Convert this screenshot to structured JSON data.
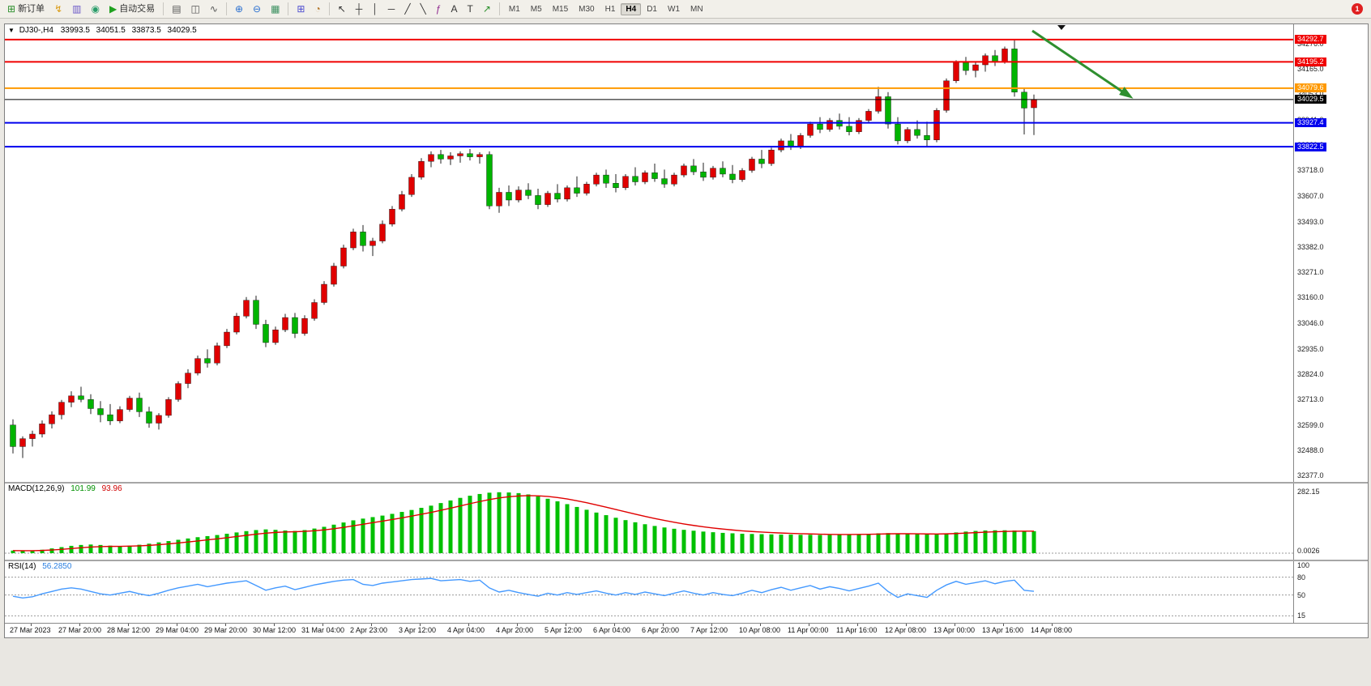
{
  "toolbar": {
    "new_order": "新订单",
    "auto_trading": "自动交易",
    "timeframes": [
      "M1",
      "M5",
      "M15",
      "M30",
      "H1",
      "H4",
      "D1",
      "W1",
      "MN"
    ],
    "active_timeframe": "H4",
    "notification_count": "1",
    "icons": {
      "new_order": "⊞",
      "lightning": "↯",
      "charts": "▥",
      "profile": "◉",
      "autotrade": "▶",
      "bar_type": "▤",
      "candle_type": "◫",
      "line_type": "∿",
      "zoom_in": "⊕",
      "zoom_out": "⊖",
      "tile_windows": "▦",
      "new_chart": "⊞",
      "clock": "◔",
      "cursor": "↖",
      "crosshair": "┼",
      "vertical_line": "│",
      "horizontal_line": "─",
      "trend_line": "╱",
      "channel": "╲",
      "fibonacci": "ƒ",
      "text": "A",
      "label": "T",
      "arrows": "↗"
    }
  },
  "chart": {
    "header": {
      "symbol": "DJ30-,H4",
      "open": "33993.5",
      "high": "34051.5",
      "low": "33873.5",
      "close": "34029.5"
    },
    "price_axis": [
      "34276.0",
      "34165.0",
      "34053.0",
      "33941.0",
      "33829.0",
      "33718.0",
      "33607.0",
      "33493.0",
      "33382.0",
      "33271.0",
      "33160.0",
      "33046.0",
      "32935.0",
      "32824.0",
      "32713.0",
      "32599.0",
      "32488.0",
      "32377.0"
    ],
    "levels": [
      {
        "label": "34292.7",
        "price": 34292.7,
        "color": "#f00000",
        "width": 2
      },
      {
        "label": "34195.2",
        "price": 34195.2,
        "color": "#f00000",
        "width": 2
      },
      {
        "label": "34079.6",
        "price": 34079.6,
        "color": "#ff9900",
        "width": 2
      },
      {
        "label": "34029.5",
        "price": 34029.5,
        "color": "#000000",
        "width": 1
      },
      {
        "label": "33927.4",
        "price": 33927.4,
        "color": "#0000ee",
        "width": 2
      },
      {
        "label": "33822.5",
        "price": 33822.5,
        "color": "#0000ee",
        "width": 2
      }
    ],
    "time_axis": [
      "27 Mar 2023",
      "27 Mar 20:00",
      "28 Mar 12:00",
      "29 Mar 04:00",
      "29 Mar 20:00",
      "30 Mar 12:00",
      "31 Mar 04:00",
      "2 Apr 23:00",
      "3 Apr 12:00",
      "4 Apr 04:00",
      "4 Apr 20:00",
      "5 Apr 12:00",
      "6 Apr 04:00",
      "6 Apr 20:00",
      "7 Apr 12:00",
      "10 Apr 08:00",
      "11 Apr 00:00",
      "11 Apr 16:00",
      "12 Apr 08:00",
      "13 Apr 00:00",
      "13 Apr 16:00",
      "14 Apr 08:00"
    ],
    "colors": {
      "up": "#e00000",
      "down": "#00b400",
      "wick": "#222222",
      "macd_hist": "#00c000",
      "macd_signal": "#e00000",
      "rsi": "#4499ff",
      "arrow": "#2f8f2f"
    }
  },
  "chart_data": {
    "type": "candlestick",
    "symbol": "DJ30-",
    "timeframe": "H4",
    "price_range": [
      32350,
      34360
    ],
    "candles": [
      [
        32600,
        32625,
        32475,
        32505
      ],
      [
        32505,
        32550,
        32455,
        32540
      ],
      [
        32540,
        32575,
        32505,
        32560
      ],
      [
        32560,
        32620,
        32545,
        32605
      ],
      [
        32605,
        32660,
        32585,
        32645
      ],
      [
        32645,
        32710,
        32625,
        32700
      ],
      [
        32700,
        32748,
        32678,
        32728
      ],
      [
        32728,
        32768,
        32700,
        32712
      ],
      [
        32712,
        32735,
        32648,
        32672
      ],
      [
        32672,
        32705,
        32612,
        32645
      ],
      [
        32645,
        32692,
        32600,
        32618
      ],
      [
        32618,
        32682,
        32608,
        32668
      ],
      [
        32668,
        32728,
        32658,
        32718
      ],
      [
        32718,
        32742,
        32635,
        32658
      ],
      [
        32658,
        32680,
        32588,
        32608
      ],
      [
        32608,
        32652,
        32580,
        32642
      ],
      [
        32642,
        32722,
        32632,
        32712
      ],
      [
        32712,
        32792,
        32702,
        32782
      ],
      [
        32782,
        32845,
        32762,
        32828
      ],
      [
        32828,
        32905,
        32818,
        32892
      ],
      [
        32892,
        32932,
        32852,
        32872
      ],
      [
        32872,
        32962,
        32862,
        32948
      ],
      [
        32948,
        33022,
        32938,
        33008
      ],
      [
        33008,
        33092,
        32998,
        33078
      ],
      [
        33078,
        33162,
        33068,
        33148
      ],
      [
        33148,
        33168,
        33022,
        33042
      ],
      [
        33042,
        33062,
        32942,
        32962
      ],
      [
        32962,
        33032,
        32952,
        33018
      ],
      [
        33018,
        33088,
        33008,
        33072
      ],
      [
        33072,
        33092,
        32982,
        33002
      ],
      [
        33002,
        33082,
        32992,
        33068
      ],
      [
        33068,
        33152,
        33058,
        33138
      ],
      [
        33138,
        33232,
        33128,
        33218
      ],
      [
        33218,
        33312,
        33208,
        33298
      ],
      [
        33298,
        33392,
        33288,
        33378
      ],
      [
        33378,
        33462,
        33368,
        33448
      ],
      [
        33448,
        33478,
        33362,
        33388
      ],
      [
        33388,
        33422,
        33342,
        33408
      ],
      [
        33408,
        33498,
        33398,
        33482
      ],
      [
        33482,
        33562,
        33472,
        33548
      ],
      [
        33548,
        33628,
        33538,
        33612
      ],
      [
        33612,
        33702,
        33602,
        33688
      ],
      [
        33688,
        33772,
        33678,
        33758
      ],
      [
        33758,
        33802,
        33732,
        33788
      ],
      [
        33788,
        33808,
        33748,
        33768
      ],
      [
        33768,
        33798,
        33742,
        33782
      ],
      [
        33782,
        33802,
        33752,
        33792
      ],
      [
        33792,
        33812,
        33762,
        33778
      ],
      [
        33778,
        33798,
        33748,
        33788
      ],
      [
        33788,
        33802,
        33548,
        33562
      ],
      [
        33562,
        33642,
        33532,
        33622
      ],
      [
        33622,
        33652,
        33562,
        33588
      ],
      [
        33588,
        33648,
        33578,
        33632
      ],
      [
        33632,
        33662,
        33592,
        33608
      ],
      [
        33608,
        33638,
        33548,
        33568
      ],
      [
        33568,
        33628,
        33558,
        33618
      ],
      [
        33618,
        33658,
        33578,
        33592
      ],
      [
        33592,
        33652,
        33582,
        33642
      ],
      [
        33642,
        33692,
        33602,
        33618
      ],
      [
        33618,
        33668,
        33608,
        33658
      ],
      [
        33658,
        33708,
        33648,
        33698
      ],
      [
        33698,
        33722,
        33642,
        33662
      ],
      [
        33662,
        33702,
        33622,
        33642
      ],
      [
        33642,
        33702,
        33632,
        33692
      ],
      [
        33692,
        33732,
        33652,
        33668
      ],
      [
        33668,
        33718,
        33658,
        33708
      ],
      [
        33708,
        33748,
        33668,
        33682
      ],
      [
        33682,
        33722,
        33642,
        33658
      ],
      [
        33658,
        33708,
        33648,
        33698
      ],
      [
        33698,
        33748,
        33688,
        33738
      ],
      [
        33738,
        33768,
        33698,
        33712
      ],
      [
        33712,
        33752,
        33672,
        33688
      ],
      [
        33688,
        33738,
        33678,
        33728
      ],
      [
        33728,
        33758,
        33688,
        33702
      ],
      [
        33702,
        33742,
        33662,
        33678
      ],
      [
        33678,
        33728,
        33668,
        33718
      ],
      [
        33718,
        33778,
        33708,
        33768
      ],
      [
        33768,
        33808,
        33728,
        33748
      ],
      [
        33748,
        33818,
        33738,
        33808
      ],
      [
        33808,
        33858,
        33798,
        33848
      ],
      [
        33848,
        33878,
        33808,
        33822
      ],
      [
        33822,
        33882,
        33812,
        33872
      ],
      [
        33872,
        33932,
        33862,
        33922
      ],
      [
        33922,
        33952,
        33882,
        33898
      ],
      [
        33898,
        33948,
        33888,
        33938
      ],
      [
        33938,
        33968,
        33898,
        33912
      ],
      [
        33912,
        33952,
        33872,
        33888
      ],
      [
        33888,
        33948,
        33878,
        33938
      ],
      [
        33938,
        33988,
        33928,
        33978
      ],
      [
        33978,
        34085,
        33968,
        34042
      ],
      [
        34042,
        34062,
        33902,
        33922
      ],
      [
        33922,
        33952,
        33832,
        33848
      ],
      [
        33848,
        33908,
        33838,
        33898
      ],
      [
        33898,
        33938,
        33858,
        33872
      ],
      [
        33872,
        33932,
        33822,
        33852
      ],
      [
        33852,
        33992,
        33842,
        33982
      ],
      [
        33982,
        34122,
        33972,
        34112
      ],
      [
        34112,
        34202,
        34102,
        34192
      ],
      [
        34192,
        34217,
        34137,
        34157
      ],
      [
        34157,
        34197,
        34127,
        34182
      ],
      [
        34182,
        34232,
        34152,
        34222
      ],
      [
        34222,
        34247,
        34177,
        34197
      ],
      [
        34197,
        34262,
        34187,
        34252
      ],
      [
        34252,
        34290,
        34042,
        34062
      ],
      [
        34062,
        34077,
        33876,
        33992
      ],
      [
        33993.5,
        34051.5,
        33873.5,
        34029.5
      ]
    ],
    "macd": {
      "label": "MACD(12,26,9)",
      "macd_value": "101.99",
      "signal_value": "93.96",
      "axis_max": "282.15",
      "axis_min": "0.0026",
      "values": [
        12,
        10,
        12,
        16,
        22,
        28,
        34,
        38,
        40,
        38,
        35,
        33,
        35,
        39,
        44,
        50,
        56,
        62,
        68,
        74,
        79,
        84,
        90,
        96,
        102,
        107,
        110,
        108,
        105,
        103,
        107,
        114,
        122,
        132,
        142,
        152,
        160,
        167,
        174,
        182,
        191,
        200,
        210,
        220,
        232,
        244,
        256,
        266,
        274,
        280,
        282,
        281,
        278,
        272,
        263,
        252,
        240,
        227,
        214,
        201,
        188,
        176,
        164,
        153,
        143,
        134,
        126,
        119,
        113,
        108,
        104,
        100,
        97,
        94,
        92,
        90,
        89,
        88,
        87,
        86,
        86,
        85,
        85,
        84,
        84,
        85,
        86,
        88,
        90,
        92,
        93,
        92,
        90,
        88,
        87,
        88,
        92,
        96,
        100,
        103,
        105,
        106,
        106,
        105,
        103,
        102
      ]
    },
    "rsi": {
      "label": "RSI(14)",
      "value": "56.2850",
      "axis": [
        "100",
        "80",
        "50",
        "15"
      ],
      "levels": [
        80,
        50,
        15
      ],
      "values": [
        48,
        45,
        47,
        52,
        56,
        60,
        62,
        60,
        56,
        52,
        50,
        53,
        56,
        52,
        49,
        53,
        58,
        62,
        65,
        68,
        64,
        67,
        70,
        72,
        74,
        66,
        58,
        62,
        65,
        59,
        63,
        67,
        70,
        73,
        75,
        76,
        68,
        66,
        70,
        72,
        74,
        76,
        77,
        78,
        74,
        75,
        76,
        73,
        75,
        62,
        55,
        58,
        54,
        51,
        48,
        53,
        50,
        54,
        51,
        54,
        57,
        53,
        50,
        54,
        51,
        55,
        52,
        49,
        53,
        57,
        53,
        50,
        54,
        51,
        49,
        53,
        58,
        54,
        59,
        63,
        58,
        62,
        66,
        60,
        64,
        61,
        57,
        61,
        65,
        70,
        56,
        46,
        52,
        49,
        46,
        58,
        67,
        73,
        68,
        71,
        74,
        69,
        73,
        75,
        58,
        56.285
      ]
    }
  }
}
